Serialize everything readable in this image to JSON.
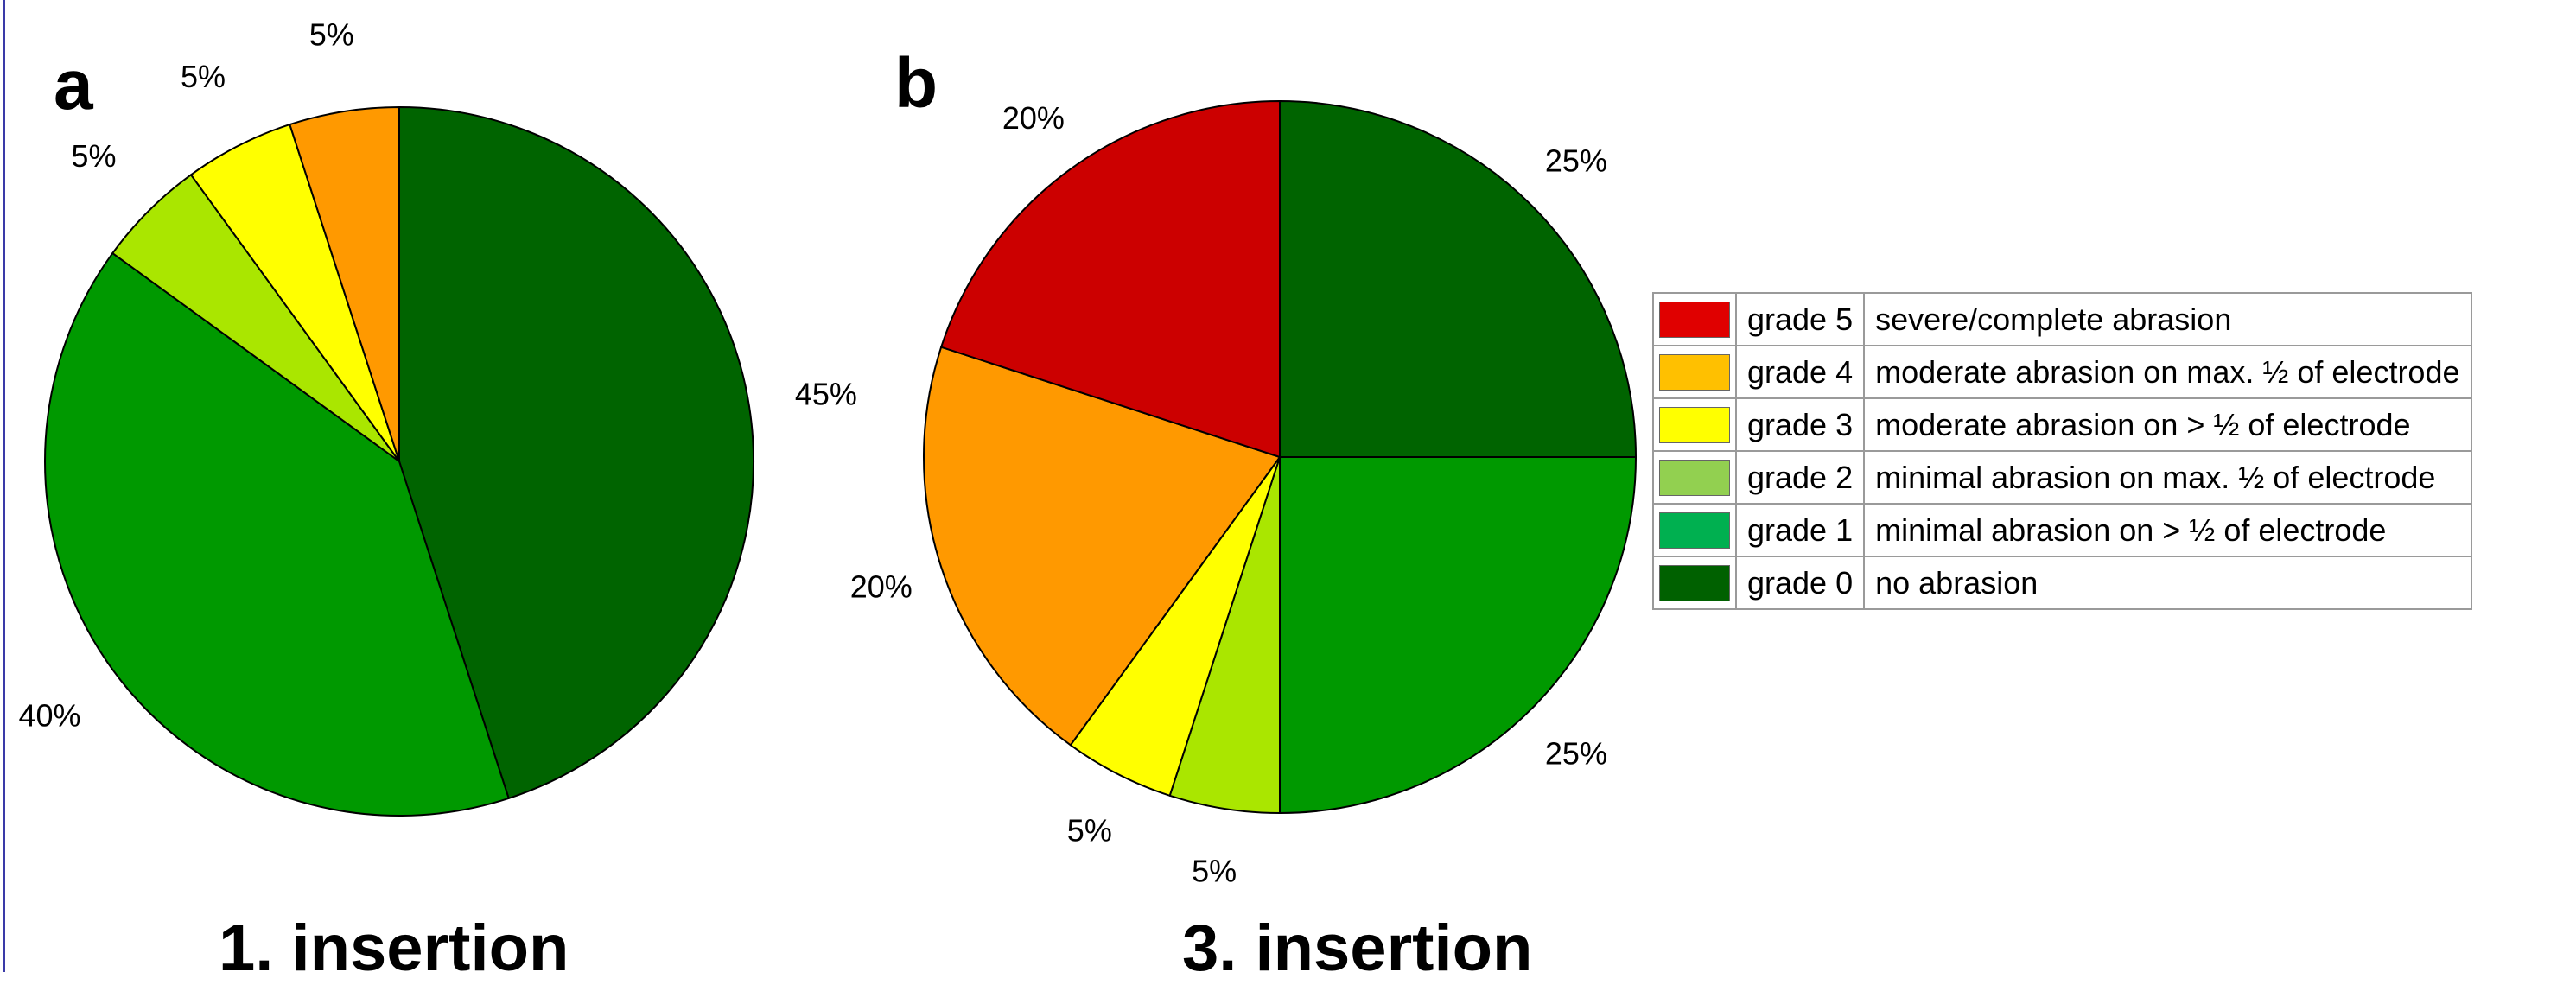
{
  "panels": {
    "a": {
      "letter": "a",
      "title": "1. insertion"
    },
    "b": {
      "letter": "b",
      "title": "3. insertion"
    }
  },
  "legend": [
    {
      "grade": "grade 5",
      "description": "severe/complete abrasion",
      "color": "#e00000"
    },
    {
      "grade": "grade 4",
      "description": "moderate abrasion on max. ½ of electrode",
      "color": "#ffc000"
    },
    {
      "grade": "grade 3",
      "description": "moderate abrasion on > ½ of electrode",
      "color": "#ffff00"
    },
    {
      "grade": "grade 2",
      "description": "minimal abrasion on max. ½ of electrode",
      "color": "#92d050"
    },
    {
      "grade": "grade 1",
      "description": "minimal abrasion on > ½ of electrode",
      "color": "#00b050"
    },
    {
      "grade": "grade 0",
      "description": "no abrasion",
      "color": "#006100"
    }
  ],
  "chart_data": [
    {
      "type": "pie",
      "panel": "a",
      "title": "1. insertion",
      "slices": [
        {
          "category": "grade 0",
          "value": 45,
          "label": "45%",
          "color": "#006400"
        },
        {
          "category": "grade 1",
          "value": 40,
          "label": "40%",
          "color": "#009900"
        },
        {
          "category": "grade 2",
          "value": 5,
          "label": "5%",
          "color": "#aae600"
        },
        {
          "category": "grade 3",
          "value": 5,
          "label": "5%",
          "color": "#ffff00"
        },
        {
          "category": "grade 4",
          "value": 5,
          "label": "5%",
          "color": "#ff9900"
        }
      ]
    },
    {
      "type": "pie",
      "panel": "b",
      "title": "3. insertion",
      "slices": [
        {
          "category": "grade 0",
          "value": 25,
          "label": "25%",
          "color": "#006400"
        },
        {
          "category": "grade 1",
          "value": 25,
          "label": "25%",
          "color": "#009900"
        },
        {
          "category": "grade 2",
          "value": 5,
          "label": "5%",
          "color": "#aae600"
        },
        {
          "category": "grade 3",
          "value": 5,
          "label": "5%",
          "color": "#ffff00"
        },
        {
          "category": "grade 4",
          "value": 20,
          "label": "20%",
          "color": "#ff9900"
        },
        {
          "category": "grade 5",
          "value": 20,
          "label": "20%",
          "color": "#cc0000"
        }
      ]
    }
  ]
}
